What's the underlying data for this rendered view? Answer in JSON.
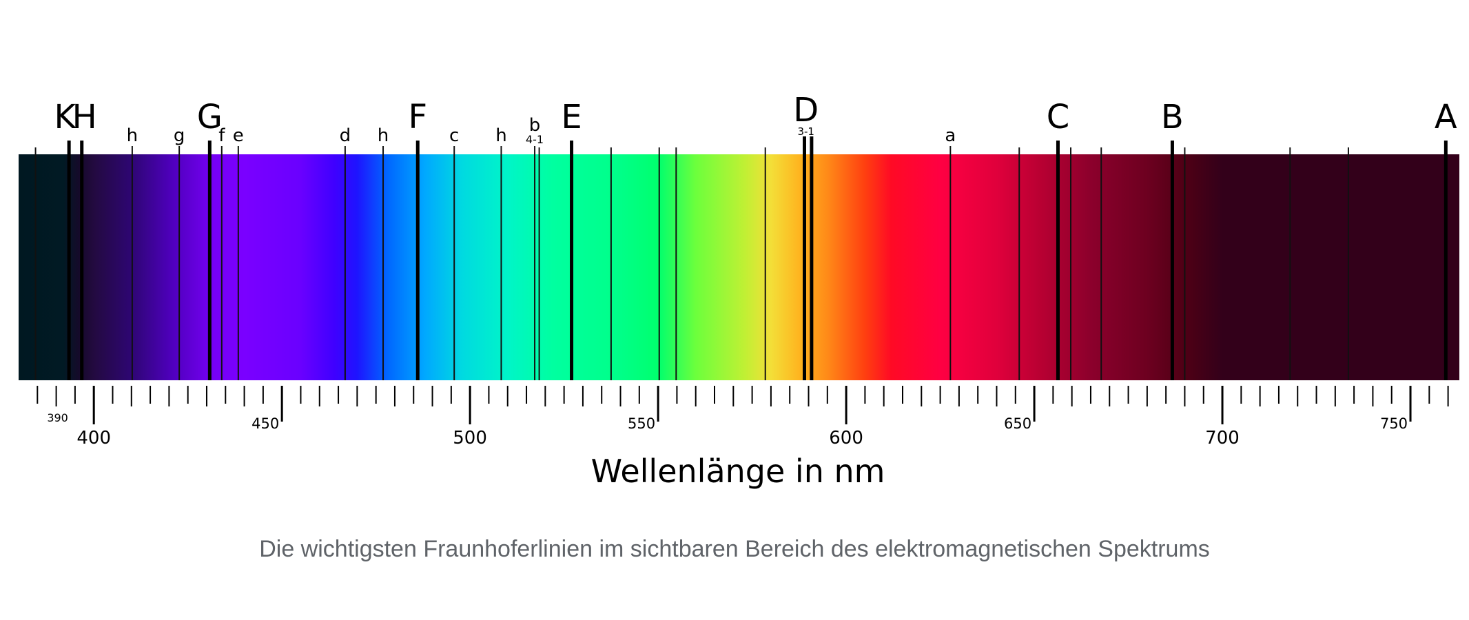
{
  "figure": {
    "axis_label": "Wellenlänge in nm",
    "caption": "Die wichtigsten Fraunhoferlinien im sichtbaren Bereich des elektromagnetischen Spektrums"
  },
  "spectrum": {
    "range_nm": [
      380,
      763
    ],
    "colors": [
      {
        "nm": 380,
        "color": "#001821"
      },
      {
        "nm": 392,
        "color": "#011a24"
      },
      {
        "nm": 396,
        "color": "#150a2a"
      },
      {
        "nm": 400,
        "color": "#230a40"
      },
      {
        "nm": 410,
        "color": "#2e0673"
      },
      {
        "nm": 420,
        "color": "#4c00b8"
      },
      {
        "nm": 432,
        "color": "#7600f5"
      },
      {
        "nm": 440,
        "color": "#7a00ff"
      },
      {
        "nm": 455,
        "color": "#6a00ff"
      },
      {
        "nm": 464,
        "color": "#3f00ff"
      },
      {
        "nm": 470,
        "color": "#1e14ff"
      },
      {
        "nm": 478,
        "color": "#0066ff"
      },
      {
        "nm": 488,
        "color": "#00a8ff"
      },
      {
        "nm": 498,
        "color": "#00dae0"
      },
      {
        "nm": 510,
        "color": "#00f5c8"
      },
      {
        "nm": 522,
        "color": "#00ffa0"
      },
      {
        "nm": 540,
        "color": "#00ff88"
      },
      {
        "nm": 550,
        "color": "#00ff6e"
      },
      {
        "nm": 560,
        "color": "#6cff3c"
      },
      {
        "nm": 573,
        "color": "#c0f034"
      },
      {
        "nm": 580,
        "color": "#f3df38"
      },
      {
        "nm": 588,
        "color": "#ffb21e"
      },
      {
        "nm": 595,
        "color": "#ff8a18"
      },
      {
        "nm": 605,
        "color": "#ff3f10"
      },
      {
        "nm": 612,
        "color": "#ff0a25"
      },
      {
        "nm": 625,
        "color": "#ff0042"
      },
      {
        "nm": 640,
        "color": "#e0003c"
      },
      {
        "nm": 652,
        "color": "#b70032"
      },
      {
        "nm": 665,
        "color": "#8c002c"
      },
      {
        "nm": 680,
        "color": "#6d0020"
      },
      {
        "nm": 690,
        "color": "#4f0015"
      },
      {
        "nm": 700,
        "color": "#33001a"
      },
      {
        "nm": 763,
        "color": "#33001a"
      }
    ]
  },
  "major_lines": [
    {
      "label": "K",
      "nm": 393.4
    },
    {
      "label": "H",
      "nm": 396.8
    },
    {
      "label": "G",
      "nm": 430.8
    },
    {
      "label": "F",
      "nm": 486.1
    },
    {
      "label": "E",
      "nm": 527.0
    },
    {
      "label": "D",
      "nm": 589.3,
      "sublabel": "3-1"
    },
    {
      "label": "C",
      "nm": 656.3
    },
    {
      "label": "B",
      "nm": 686.7
    },
    {
      "label": "A",
      "nm": 759.4
    }
  ],
  "major_line_pairs": [
    {
      "nm": 588.9
    },
    {
      "nm": 590.8
    }
  ],
  "minor_lines": [
    {
      "label": "h",
      "nm": 410.2
    },
    {
      "label": "g",
      "nm": 422.7
    },
    {
      "label": "f",
      "nm": 434.0
    },
    {
      "label": "e",
      "nm": 438.4
    },
    {
      "label": "d",
      "nm": 466.8
    },
    {
      "label": "h",
      "nm": 476.9
    },
    {
      "label": "c",
      "nm": 495.8
    },
    {
      "label": "h",
      "nm": 508.3
    },
    {
      "label": "b",
      "nm": 517.2,
      "sublabel": "4-1"
    },
    {
      "label": "a",
      "nm": 627.7
    }
  ],
  "unlabeled_lines_nm": [
    384.5,
    518.4,
    537.5,
    550.3,
    554.8,
    578.5,
    646.0,
    659.7,
    667.8,
    690.0,
    718.0,
    733.5
  ],
  "axis": {
    "major_ticks": [
      400,
      500,
      600,
      700
    ],
    "mid_ticks": [
      450,
      550,
      650,
      750
    ],
    "small_labels": [
      390
    ],
    "minor_step": 5,
    "range": [
      383,
      762
    ]
  }
}
